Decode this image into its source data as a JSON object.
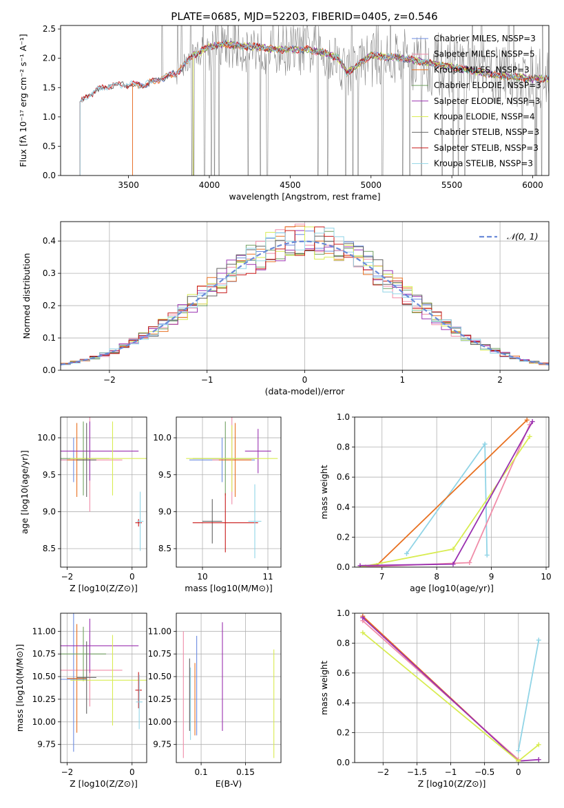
{
  "figure_title": "PLATE=0685, MJD=52203, FIBERID=0405, z=0.546",
  "colors": [
    "#6a8ae0",
    "#f08ca8",
    "#e87020",
    "#70a060",
    "#9a30b0",
    "#d8ec50",
    "#606060",
    "#c81818",
    "#90d4e6"
  ],
  "chart_data": [
    {
      "id": "spectrum",
      "type": "line",
      "xlabel": "wavelength [Angstrom, rest frame]",
      "ylabel": "Flux [fλ 10⁻¹⁷ erg cm⁻² s⁻¹ A⁻¹]",
      "xlim": [
        3080,
        6100
      ],
      "ylim": [
        0,
        2.56
      ],
      "xticks": [
        3500,
        4000,
        4500,
        5000,
        5500,
        6000
      ],
      "yticks": [
        0.0,
        0.5,
        1.0,
        1.5,
        2.0,
        2.5
      ],
      "legend_position": "top-right",
      "legend": [
        "Chabrier MILES, NSSP=3",
        "Salpeter MILES, NSSP=5",
        "Kroupa MILES, NSSP=3",
        "Chabrier ELODIE, NSSP=3",
        "Salpeter ELODIE, NSSP=3",
        "Kroupa ELODIE, NSSP=4",
        "Chabrier STELIB, NSSP=3",
        "Salpeter STELIB, NSSP=3",
        "Kroupa STELIB, NSSP=3"
      ],
      "model_start": {
        "STELIB": 3200,
        "MILES": 3525,
        "ELODIE": 3900
      },
      "continuum": [
        [
          3200,
          1.25
        ],
        [
          3300,
          1.45
        ],
        [
          3400,
          1.55
        ],
        [
          3500,
          1.55
        ],
        [
          3600,
          1.55
        ],
        [
          3700,
          1.65
        ],
        [
          3800,
          1.75
        ],
        [
          3900,
          2.05
        ],
        [
          4000,
          2.2
        ],
        [
          4100,
          2.25
        ],
        [
          4200,
          2.2
        ],
        [
          4300,
          2.2
        ],
        [
          4400,
          2.15
        ],
        [
          4500,
          2.15
        ],
        [
          4600,
          2.15
        ],
        [
          4700,
          2.1
        ],
        [
          4800,
          2.0
        ],
        [
          4850,
          1.75
        ],
        [
          4900,
          1.85
        ],
        [
          5000,
          2.05
        ],
        [
          5200,
          2.0
        ],
        [
          5500,
          1.85
        ],
        [
          5800,
          1.7
        ],
        [
          6000,
          1.65
        ]
      ]
    },
    {
      "id": "residuals",
      "type": "histogram",
      "xlabel": "(data-model)/error",
      "ylabel": "Normed distribution",
      "xlim": [
        -2.5,
        2.5
      ],
      "ylim": [
        0,
        0.46
      ],
      "xticks": [
        -2,
        -1,
        0,
        1,
        2
      ],
      "yticks": [
        0.0,
        0.1,
        0.2,
        0.3,
        0.4
      ],
      "bin_width": 0.1,
      "legend": [
        "𝒩(0, 1)"
      ],
      "legend_position": "top-right",
      "grid": true
    },
    {
      "id": "age-vs-z",
      "type": "errorbar",
      "xlabel": "Z [log10(Z/Z⊙)]",
      "ylabel": "age  [log10(age/yr)]",
      "xlim": [
        -2.2,
        0.45
      ],
      "ylim": [
        8.25,
        10.28
      ],
      "xticks": [
        -2,
        0
      ],
      "yticks": [
        8.5,
        9.0,
        9.5,
        10.0
      ],
      "points": [
        {
          "c": 0,
          "x": -1.8,
          "y": 9.7,
          "xe": 0.5,
          "ye": 0.3
        },
        {
          "c": 1,
          "x": -1.3,
          "y": 9.7,
          "xe": 1.0,
          "ye": 0.7
        },
        {
          "c": 2,
          "x": -1.7,
          "y": 9.7,
          "xe": 0.3,
          "ye": 0.5
        },
        {
          "c": 3,
          "x": -1.5,
          "y": 9.72,
          "xe": 0.8,
          "ye": 0.5
        },
        {
          "c": 4,
          "x": -1.3,
          "y": 9.82,
          "xe": 1.5,
          "ye": 0.4
        },
        {
          "c": 5,
          "x": -0.6,
          "y": 9.72,
          "xe": 1.3,
          "ye": 0.5
        },
        {
          "c": 6,
          "x": -1.4,
          "y": 9.7,
          "xe": 0.3,
          "ye": 0.5
        },
        {
          "c": 7,
          "x": 0.2,
          "y": 8.85,
          "xe": 0.1,
          "ye": 0.05
        },
        {
          "c": 8,
          "x": 0.25,
          "y": 8.87,
          "xe": 0.1,
          "ye": 0.4
        }
      ]
    },
    {
      "id": "age-vs-mass",
      "type": "errorbar",
      "xlabel": "mass [log10(M/M⊙)]",
      "ylabel": "",
      "xlim": [
        9.6,
        11.2
      ],
      "ylim": [
        8.25,
        10.28
      ],
      "xticks": [
        10,
        11
      ],
      "yticks": [
        8.5,
        9.0,
        9.5,
        10.0
      ],
      "points": [
        {
          "c": 0,
          "x": 10.3,
          "y": 9.7,
          "xe": 0.5,
          "ye": 0.3
        },
        {
          "c": 1,
          "x": 10.45,
          "y": 9.7,
          "xe": 0.3,
          "ye": 0.6
        },
        {
          "c": 2,
          "x": 10.5,
          "y": 9.7,
          "xe": 0.25,
          "ye": 0.5
        },
        {
          "c": 3,
          "x": 10.35,
          "y": 9.72,
          "xe": 0.5,
          "ye": 0.5
        },
        {
          "c": 4,
          "x": 10.85,
          "y": 9.82,
          "xe": 0.2,
          "ye": 0.3
        },
        {
          "c": 5,
          "x": 10.45,
          "y": 9.72,
          "xe": 0.7,
          "ye": 0.45
        },
        {
          "c": 6,
          "x": 10.15,
          "y": 8.87,
          "xe": 0.15,
          "ye": 0.3
        },
        {
          "c": 7,
          "x": 10.35,
          "y": 8.85,
          "xe": 0.5,
          "ye": 0.4
        },
        {
          "c": 8,
          "x": 10.8,
          "y": 8.87,
          "xe": 0.1,
          "ye": 0.5
        }
      ]
    },
    {
      "id": "weight-vs-age",
      "type": "line",
      "xlabel": "age  [log10(age/yr)]",
      "ylabel": "mass weight",
      "xlim": [
        6.5,
        10.05
      ],
      "ylim": [
        0,
        1.0
      ],
      "xticks": [
        7,
        8,
        9,
        10
      ],
      "yticks": [
        0.0,
        0.2,
        0.4,
        0.6,
        0.8,
        1.0
      ],
      "series": [
        {
          "c": 8,
          "x": [
            7.45,
            8.88,
            8.92
          ],
          "y": [
            0.09,
            0.82,
            0.08
          ]
        },
        {
          "c": 2,
          "x": [
            6.7,
            6.9,
            9.65
          ],
          "y": [
            0.0,
            0.01,
            0.98
          ]
        },
        {
          "c": 1,
          "x": [
            6.6,
            8.6,
            9.7
          ],
          "y": [
            0.0,
            0.03,
            0.95
          ]
        },
        {
          "c": 5,
          "x": [
            6.6,
            8.3,
            9.7
          ],
          "y": [
            0.0,
            0.12,
            0.87
          ]
        },
        {
          "c": 4,
          "x": [
            6.6,
            8.3,
            9.75
          ],
          "y": [
            0.01,
            0.02,
            0.97
          ]
        }
      ]
    },
    {
      "id": "mass-vs-z",
      "type": "errorbar",
      "xlabel": "Z [log10(Z/Z⊙)]",
      "ylabel": "mass [log10(M/M⊙)]",
      "xlim": [
        -2.2,
        0.45
      ],
      "ylim": [
        9.55,
        11.2
      ],
      "xticks": [
        -2,
        0
      ],
      "yticks": [
        9.75,
        10.0,
        10.25,
        10.5,
        10.75,
        11.0
      ],
      "points": [
        {
          "c": 0,
          "x": -1.8,
          "y": 10.47,
          "xe": 0.4,
          "ye": 0.8
        },
        {
          "c": 1,
          "x": -1.3,
          "y": 10.57,
          "xe": 1.0,
          "ye": 0.4
        },
        {
          "c": 2,
          "x": -1.7,
          "y": 10.48,
          "xe": 0.3,
          "ye": 0.6
        },
        {
          "c": 3,
          "x": -1.5,
          "y": 10.75,
          "xe": 0.7,
          "ye": 0.3
        },
        {
          "c": 4,
          "x": -1.3,
          "y": 10.84,
          "xe": 1.5,
          "ye": 0.3
        },
        {
          "c": 5,
          "x": -0.6,
          "y": 10.46,
          "xe": 1.3,
          "ye": 0.5
        },
        {
          "c": 6,
          "x": -1.4,
          "y": 10.49,
          "xe": 0.3,
          "ye": 0.4
        },
        {
          "c": 7,
          "x": 0.2,
          "y": 10.35,
          "xe": 0.1,
          "ye": 0.2
        },
        {
          "c": 8,
          "x": 0.22,
          "y": 10.22,
          "xe": 0.1,
          "ye": 0.3
        }
      ]
    },
    {
      "id": "mass-vs-ebv",
      "type": "errorbar",
      "xlabel": "E(B-V)",
      "ylabel": "",
      "xlim": [
        0.072,
        0.19
      ],
      "ylim": [
        9.55,
        11.2
      ],
      "xticks": [
        0.1,
        0.15
      ],
      "yticks": [
        9.75,
        10.0,
        10.25,
        10.5,
        10.75,
        11.0
      ],
      "points": [
        {
          "c": 0,
          "x": 0.095,
          "y": 10.4,
          "ye": 0.55
        },
        {
          "c": 1,
          "x": 0.08,
          "y": 10.3,
          "ye": 0.7
        },
        {
          "c": 2,
          "x": 0.093,
          "y": 10.25,
          "ye": 0.4
        },
        {
          "c": 6,
          "x": 0.087,
          "y": 10.3,
          "ye": 0.4
        },
        {
          "c": 8,
          "x": 0.088,
          "y": 10.2,
          "ye": 0.4
        },
        {
          "c": 4,
          "x": 0.124,
          "y": 10.5,
          "ye": 0.6
        },
        {
          "c": 5,
          "x": 0.182,
          "y": 10.2,
          "ye": 0.6
        }
      ]
    },
    {
      "id": "weight-vs-z",
      "type": "line",
      "xlabel": "Z [log10(Z/Z⊙)]",
      "ylabel": "mass weight",
      "xlim": [
        -2.42,
        0.45
      ],
      "ylim": [
        0,
        1.0
      ],
      "xticks": [
        -2.0,
        -1.5,
        -1.0,
        -0.5,
        0.0
      ],
      "yticks": [
        0.0,
        0.2,
        0.4,
        0.6,
        0.8,
        1.0
      ],
      "series": [
        {
          "c": 8,
          "x": [
            0.0,
            0.3
          ],
          "y": [
            0.08,
            0.82
          ]
        },
        {
          "c": 2,
          "x": [
            -2.3,
            0.0
          ],
          "y": [
            0.98,
            0.01
          ]
        },
        {
          "c": 1,
          "x": [
            -2.3,
            0.0
          ],
          "y": [
            0.95,
            0.02
          ]
        },
        {
          "c": 4,
          "x": [
            -2.3,
            0.0,
            0.3
          ],
          "y": [
            0.97,
            0.01,
            0.02
          ]
        },
        {
          "c": 5,
          "x": [
            -2.3,
            0.0,
            0.3
          ],
          "y": [
            0.87,
            0.01,
            0.12
          ]
        }
      ]
    }
  ]
}
